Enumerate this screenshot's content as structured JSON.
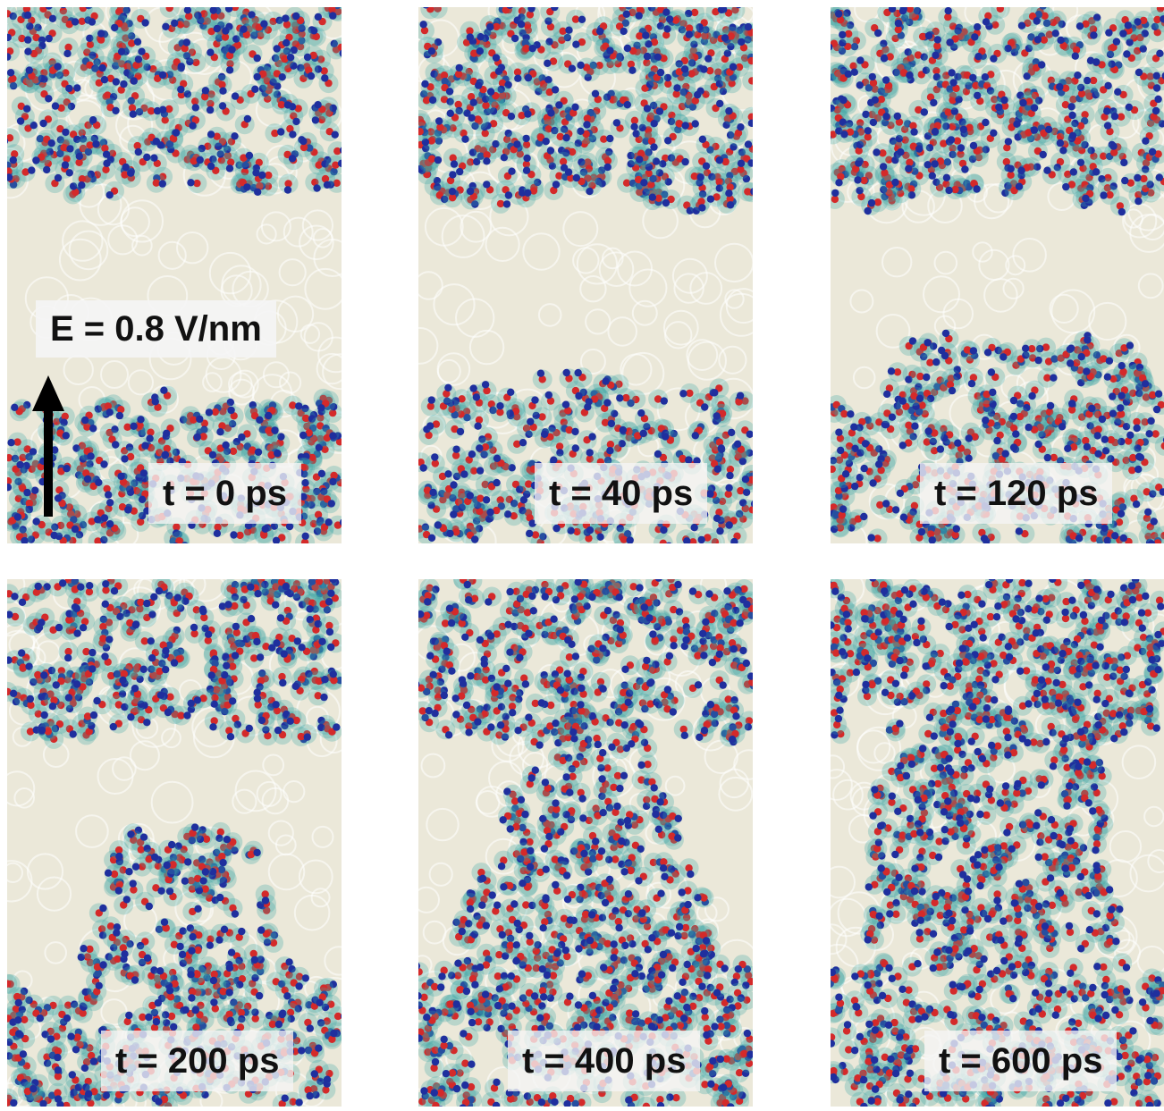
{
  "figure": {
    "field_label": "E = 0.8 V/nm",
    "panels": [
      {
        "time_label": "t = 0 ps"
      },
      {
        "time_label": "t = 40 ps"
      },
      {
        "time_label": "t = 120 ps"
      },
      {
        "time_label": "t = 200 ps"
      },
      {
        "time_label": "t = 400 ps"
      },
      {
        "time_label": "t = 600 ps"
      }
    ],
    "colors": {
      "membrane": "#ebe8d9",
      "water_shell": "#3aa6a6",
      "oxygen_atom": "#d42a2a",
      "hydrogen_atom": "#1f2f9e",
      "arrow": "#000000"
    },
    "arrow_icon": "up-arrow-icon"
  }
}
